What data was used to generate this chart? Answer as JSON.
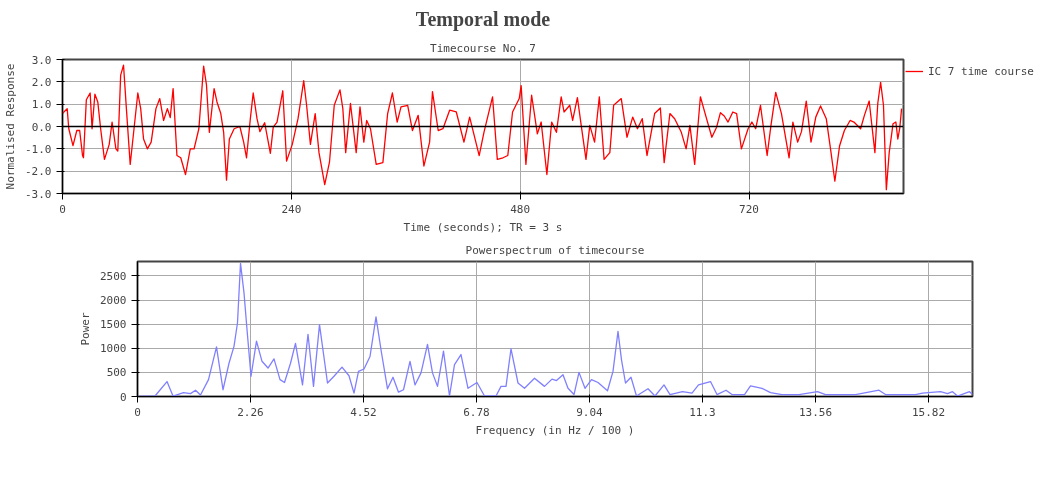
{
  "chart_data": [
    {
      "type": "line",
      "title": "Temporal mode",
      "subtitle": "Timecourse No. 7",
      "xlabel": "Time (seconds); TR = 3 s",
      "ylabel": "Normalised Response",
      "x": [
        0,
        4.9,
        6.6,
        11,
        15,
        18,
        21,
        22,
        25,
        29,
        31,
        34,
        37,
        40,
        44,
        49,
        52,
        56,
        58,
        61,
        64,
        67,
        71,
        75,
        79,
        82,
        85,
        89,
        93,
        98,
        102,
        106,
        110,
        113,
        116,
        120,
        124,
        129,
        134,
        138,
        143,
        148,
        151,
        154,
        159,
        162,
        166,
        169,
        172,
        175,
        180,
        186,
        190,
        193,
        197,
        200,
        204,
        207,
        212,
        218,
        221,
        225,
        231,
        235,
        241,
        247,
        253,
        256,
        260,
        265,
        269,
        275,
        280,
        285,
        291,
        294,
        297,
        302,
        308,
        312,
        316,
        319,
        323,
        329,
        336,
        341,
        346,
        351,
        355,
        362,
        367,
        373,
        379,
        385,
        388,
        394,
        399,
        406,
        413,
        421,
        427,
        437,
        442,
        451,
        456,
        462,
        467,
        472,
        479,
        481,
        486,
        492,
        498,
        502,
        508,
        513,
        518,
        523,
        526,
        532,
        535,
        540,
        544,
        549,
        553,
        558,
        563,
        568,
        574,
        578,
        586,
        592,
        598,
        603,
        608,
        613,
        621,
        627,
        631,
        637,
        642,
        649,
        654,
        658,
        663,
        669,
        675,
        681,
        686,
        690,
        694,
        698,
        703,
        707,
        712,
        719,
        723,
        727,
        732,
        739,
        743,
        748,
        754,
        762,
        766,
        771,
        775,
        780,
        785,
        790,
        795,
        801,
        806,
        810,
        815,
        820,
        826,
        830,
        837,
        841,
        846,
        852,
        855,
        858,
        861,
        864,
        867,
        871,
        874,
        876,
        878,
        880
      ],
      "series": [
        {
          "name": "IC 7 time course",
          "color": "#ff0000",
          "values": [
            0.58,
            0.8,
            -0.1,
            -0.86,
            -0.18,
            -0.18,
            -1.3,
            -1.4,
            1.2,
            1.5,
            -0.1,
            1.45,
            1.1,
            -0.1,
            -1.47,
            -0.8,
            0.2,
            -1.0,
            -1.1,
            2.3,
            2.75,
            0.8,
            -1.7,
            -0.1,
            1.5,
            0.8,
            -0.56,
            -1.0,
            -0.7,
            0.8,
            1.25,
            0.27,
            0.8,
            0.4,
            1.7,
            -1.3,
            -1.4,
            -2.15,
            -1.0,
            -1.0,
            -0.1,
            2.7,
            1.86,
            -0.26,
            1.7,
            1.1,
            0.58,
            -0.26,
            -2.4,
            -0.56,
            -0.1,
            0,
            -0.7,
            -1.4,
            0.35,
            1.5,
            0.35,
            -0.23,
            0.17,
            -1.2,
            -0.03,
            0.2,
            1.6,
            -1.55,
            -0.8,
            0.35,
            2.05,
            0.95,
            -0.8,
            0.58,
            -1.17,
            -2.6,
            -1.6,
            0.95,
            1.64,
            0.8,
            -1.17,
            1.03,
            -1.17,
            0.88,
            -0.7,
            0.27,
            -0.1,
            -1.7,
            -1.62,
            0.58,
            1.5,
            0.2,
            0.88,
            0.95,
            -0.18,
            0.5,
            -1.77,
            -0.7,
            1.56,
            -0.18,
            -0.1,
            0.73,
            0.65,
            -0.7,
            0.42,
            -1.3,
            -0.26,
            1.33,
            -1.47,
            -1.4,
            -1.3,
            0.65,
            1.25,
            1.83,
            -1.7,
            1.4,
            -0.33,
            0.2,
            -2.15,
            0.2,
            -0.26,
            1.33,
            0.65,
            0.95,
            0.27,
            1.29,
            0.05,
            -1.47,
            0.05,
            -0.7,
            1.33,
            -1.47,
            -1.17,
            0.95,
            1.25,
            -0.48,
            0.42,
            -0.1,
            0.35,
            -1.3,
            0.58,
            0.83,
            -1.62,
            0.58,
            0.35,
            -0.26,
            -1.0,
            0.05,
            -1.7,
            1.33,
            0.42,
            -0.48,
            -0.03,
            0.62,
            0.47,
            0.2,
            0.65,
            0.58,
            -1.0,
            -0.1,
            0.2,
            -0.1,
            0.95,
            -1.3,
            0.05,
            1.53,
            0.58,
            -1.4,
            0.2,
            -0.7,
            -0.23,
            1.14,
            -0.7,
            0.42,
            0.92,
            0.35,
            -1.17,
            -2.45,
            -0.86,
            -0.18,
            0.27,
            0.2,
            -0.1,
            0.5,
            1.14,
            -1.17,
            1.03,
            1.98,
            0.95,
            -2.83,
            -1.17,
            0.12,
            0.2,
            -0.56,
            -0.1,
            0.8
          ]
        }
      ],
      "xlim": [
        0,
        882
      ],
      "xticks": [
        0,
        240,
        480,
        720
      ],
      "ylim": [
        -3,
        3
      ],
      "yticks": [
        {
          "value": -3,
          "label": "-3.0"
        },
        {
          "value": -2,
          "label": "-2.0"
        },
        {
          "value": -1,
          "label": "-1.0"
        },
        {
          "value": 0,
          "label": "0.0"
        },
        {
          "value": 1,
          "label": "1.0"
        },
        {
          "value": 2,
          "label": "2.0"
        },
        {
          "value": 3,
          "label": "3.0"
        }
      ],
      "ref_lines": [
        {
          "axis": "y",
          "value": 0,
          "color": "#000000"
        }
      ],
      "grid": true,
      "legend": "right"
    },
    {
      "type": "line",
      "title": "Powerspectrum of timecourse",
      "xlabel": "Frequency (in Hz / 100 )",
      "ylabel": "Power",
      "x": [
        0,
        0.35,
        0.59,
        0.71,
        0.92,
        1.06,
        1.16,
        1.26,
        1.42,
        1.58,
        1.71,
        1.83,
        1.93,
        2.0,
        2.06,
        2.13,
        2.19,
        2.27,
        2.38,
        2.49,
        2.61,
        2.73,
        2.85,
        2.94,
        3.06,
        3.16,
        3.3,
        3.41,
        3.52,
        3.64,
        3.8,
        3.93,
        4.09,
        4.23,
        4.33,
        4.42,
        4.53,
        4.65,
        4.77,
        4.87,
        5.0,
        5.11,
        5.22,
        5.32,
        5.45,
        5.55,
        5.67,
        5.8,
        5.9,
        6.0,
        6.12,
        6.24,
        6.34,
        6.47,
        6.61,
        6.79,
        6.94,
        7.17,
        7.27,
        7.37,
        7.47,
        7.61,
        7.74,
        7.94,
        8.14,
        8.29,
        8.38,
        8.51,
        8.61,
        8.73,
        8.83,
        8.95,
        9.08,
        9.21,
        9.4,
        9.51,
        9.61,
        9.68,
        9.76,
        9.87,
        9.98,
        10.21,
        10.35,
        10.53,
        10.65,
        10.9,
        11.09,
        11.22,
        11.46,
        11.59,
        11.77,
        11.89,
        12.14,
        12.26,
        12.49,
        12.66,
        12.89,
        13.23,
        13.6,
        13.76,
        14.36,
        14.83,
        14.96,
        15.56,
        15.7,
        16.06,
        16.2,
        16.3,
        16.4,
        16.64,
        16.7
      ],
      "series": [
        {
          "color": "#8080ff",
          "values": [
            0,
            10,
            310,
            10,
            80,
            60,
            130,
            30,
            350,
            1030,
            140,
            690,
            1040,
            1530,
            2760,
            2150,
            1390,
            420,
            1150,
            730,
            590,
            780,
            350,
            290,
            690,
            1100,
            240,
            1290,
            210,
            1490,
            280,
            420,
            610,
            430,
            70,
            520,
            570,
            830,
            1650,
            970,
            160,
            400,
            90,
            140,
            730,
            240,
            490,
            1080,
            490,
            210,
            940,
            10,
            660,
            870,
            170,
            290,
            10,
            10,
            210,
            210,
            990,
            280,
            170,
            380,
            210,
            360,
            330,
            450,
            170,
            40,
            500,
            170,
            350,
            290,
            120,
            520,
            1350,
            760,
            280,
            400,
            10,
            160,
            10,
            240,
            40,
            100,
            70,
            240,
            310,
            40,
            130,
            40,
            40,
            220,
            170,
            80,
            40,
            40,
            100,
            40,
            40,
            130,
            40,
            40,
            70,
            100,
            60,
            100,
            10,
            100,
            40
          ]
        }
      ],
      "xlim": [
        0,
        16.7
      ],
      "xticks": [
        0,
        2.26,
        4.52,
        6.78,
        9.04,
        11.3,
        13.56,
        15.82
      ],
      "ylim": [
        0,
        2800
      ],
      "yticks": [
        0,
        500,
        1000,
        1500,
        2000,
        2500
      ],
      "grid": true
    }
  ]
}
